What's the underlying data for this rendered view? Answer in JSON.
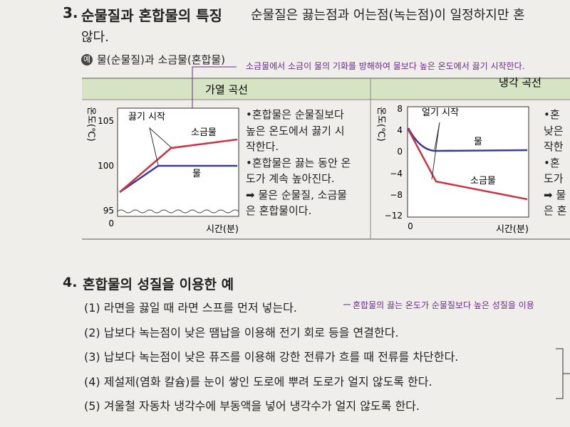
{
  "section3": {
    "number": "3.",
    "title": "순물질과 혼합물의 특징",
    "text": "순물질은 끓는점과 어는점(녹는점)이 일정하지만 혼",
    "text_cont": "않다.",
    "example_mark": "예",
    "example": "물(순물질)과 소금물(혼합물)",
    "annotation": "소금물에서 소금이 물의 기화를 방해하여 물보다 높은 온도에서 끓기 시작한다."
  },
  "table": {
    "headers": [
      "가열 곡선",
      "냉각 곡선"
    ],
    "heating": {
      "ylabel": "온도(℃)",
      "yticks": [
        "105",
        "100",
        "95",
        "0"
      ],
      "xlabel": "시간(분)",
      "start_label": "끓기 시작",
      "salt": "소금물",
      "water": "물",
      "notes": [
        "•혼합물은 순물질보다",
        "높은 온도에서 끓기 시",
        "작한다.",
        "•혼합물은 끓는 동안 온",
        "도가 계속 높아진다.",
        "➡ 물은 순물질, 소금물",
        "은 혼합물이다."
      ]
    },
    "cooling": {
      "ylabel": "온도(℃)",
      "yticks": [
        "8",
        "4",
        "0",
        "−4",
        "−8",
        "−12"
      ],
      "xorigin": "0",
      "xlabel": "시간(분)",
      "start_label": "얼기 시작",
      "salt": "소금물",
      "water": "물",
      "notes": [
        "•혼",
        "낮은",
        "작한",
        "•혼",
        "도가",
        "➡ 물",
        "은 혼"
      ]
    }
  },
  "section4": {
    "number": "4.",
    "title": "혼합물의 성질을 이용한 예",
    "annotation": "혼합물의 끓는 온도가 순물질보다 높은 성질을 이용",
    "items": [
      "(1) 라면을 끓일 때 라면 스프를 먼저 넣는다.",
      "(2) 납보다 녹는점이 낮은 땜납을 이용해 전기 회로 등을 연결한다.",
      "(3) 납보다 녹는점이 낮은 퓨즈를 이용해 강한 전류가 흐를 때 전류를 차단한다.",
      "(4) 제설제(염화 칼슘)를 눈이 쌓인 도로에 뿌려 도로가 얼지 않도록 한다.",
      "(5) 겨울철 자동차 냉각수에 부동액을 넣어 냉각수가 얼지 않도록 한다."
    ]
  }
}
